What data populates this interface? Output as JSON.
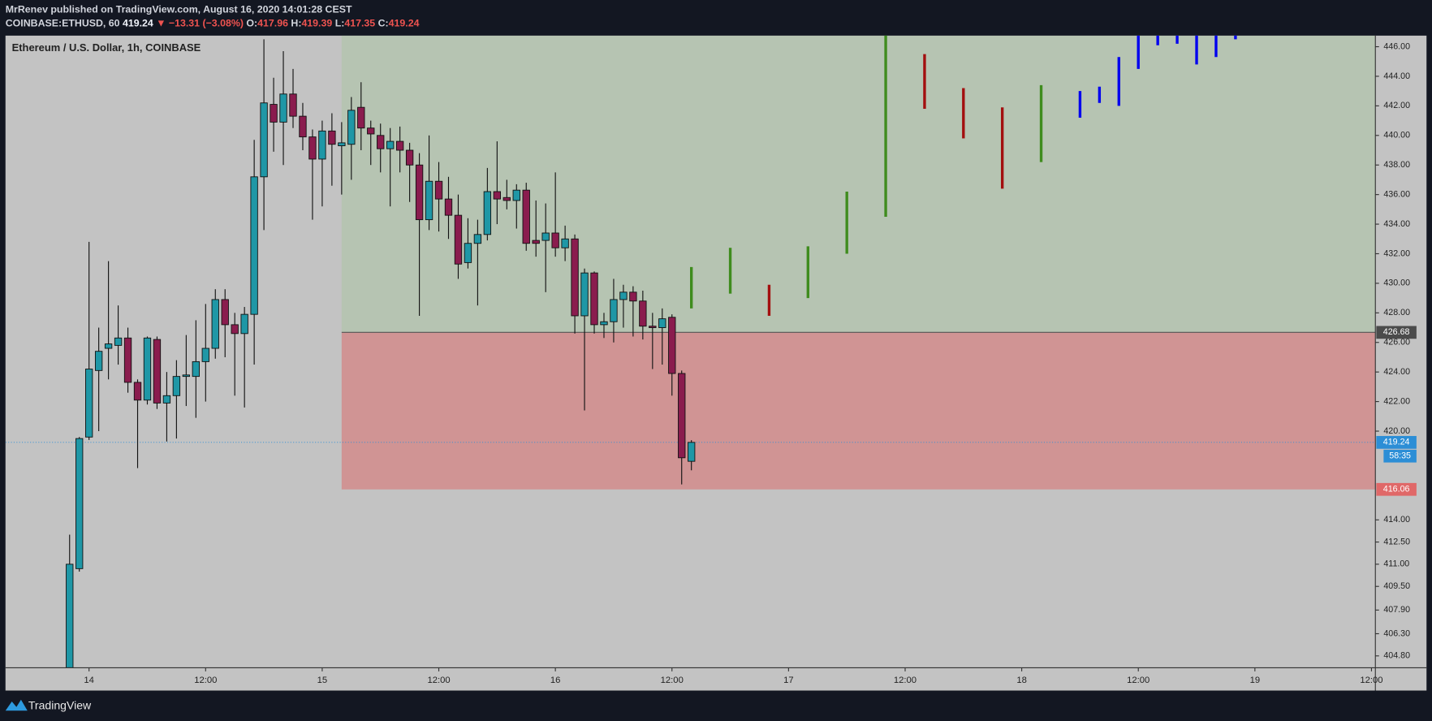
{
  "header": {
    "publisher": "MrRenev published on TradingView.com, August 16, 2020 14:01:28 CEST",
    "symbol": "COINBASE:ETHUSD, 60",
    "price": "419.24",
    "change": "▼ −13.31 (−3.08%)",
    "ohlc": [
      {
        "label": "O:",
        "value": "417.96"
      },
      {
        "label": "H:",
        "value": "419.39"
      },
      {
        "label": "L:",
        "value": "417.35"
      },
      {
        "label": "C:",
        "value": "419.24"
      }
    ]
  },
  "chart_data": {
    "type": "candlestick",
    "title": "Ethereum / U.S. Dollar, 1h, COINBASE",
    "up_color": "#1f97a6",
    "down_color": "#8a1c4e",
    "x": [
      0,
      1,
      2,
      3,
      4,
      5,
      6,
      7,
      8,
      9,
      10,
      11,
      12,
      13,
      14,
      15,
      16,
      17,
      18,
      19,
      20,
      21,
      22,
      23,
      24,
      25,
      26,
      27,
      28,
      29,
      30,
      31,
      32,
      33,
      34,
      35,
      36,
      37,
      38,
      39,
      40,
      41,
      42,
      43,
      44,
      45,
      46,
      47,
      48,
      49,
      50,
      51,
      52,
      53,
      54,
      55,
      56,
      57,
      58,
      59,
      60,
      61,
      62,
      63,
      64
    ],
    "open": [
      404.0,
      410.7,
      419.6,
      424.1,
      425.6,
      425.8,
      426.3,
      423.3,
      422.1,
      426.2,
      421.9,
      422.4,
      423.7,
      423.7,
      424.7,
      425.6,
      428.9,
      427.2,
      426.6,
      427.9,
      437.2,
      442.1,
      440.9,
      442.8,
      441.3,
      439.9,
      438.4,
      440.3,
      439.3,
      439.4,
      441.9,
      440.5,
      440.0,
      439.1,
      439.6,
      439.0,
      438.0,
      434.3,
      436.9,
      435.7,
      434.6,
      431.4,
      432.7,
      433.3,
      436.2,
      435.8,
      435.6,
      436.3,
      432.9,
      432.9,
      433.4,
      432.4,
      433.0,
      427.8,
      430.7,
      427.2,
      427.4,
      428.9,
      429.4,
      428.8,
      427.1,
      427.0,
      427.7,
      423.9,
      417.96
    ],
    "high": [
      413.0,
      419.6,
      432.8,
      427.0,
      431.5,
      428.5,
      427.0,
      423.5,
      426.4,
      426.4,
      424.0,
      424.8,
      426.5,
      427.5,
      428.6,
      429.6,
      429.6,
      428.0,
      428.4,
      439.7,
      446.5,
      443.9,
      445.7,
      444.5,
      442.2,
      440.4,
      441.0,
      441.5,
      440.9,
      442.6,
      443.6,
      441.0,
      440.8,
      440.5,
      440.6,
      439.5,
      438.8,
      440.0,
      438.2,
      437.2,
      436.0,
      434.4,
      434.3,
      437.8,
      439.6,
      437.0,
      436.7,
      436.8,
      435.6,
      435.4,
      437.5,
      433.9,
      433.3,
      431.0,
      430.8,
      428.0,
      430.3,
      429.9,
      429.8,
      429.5,
      428.0,
      428.3,
      427.9,
      424.1,
      419.39
    ],
    "low": [
      403.5,
      410.5,
      419.4,
      420.0,
      423.5,
      424.5,
      422.6,
      417.5,
      421.8,
      421.5,
      419.3,
      419.5,
      421.7,
      420.9,
      422.0,
      424.9,
      425.0,
      422.4,
      421.6,
      424.5,
      433.6,
      438.9,
      438.0,
      440.5,
      439.0,
      434.3,
      435.2,
      436.6,
      436.0,
      437.0,
      439.0,
      438.0,
      437.5,
      435.2,
      437.5,
      435.5,
      427.8,
      433.6,
      433.5,
      433.0,
      430.3,
      431.0,
      428.5,
      432.9,
      434.0,
      435.0,
      433.7,
      432.2,
      431.8,
      429.4,
      431.8,
      431.5,
      426.6,
      421.4,
      426.6,
      426.3,
      426.0,
      427.0,
      426.4,
      426.2,
      424.2,
      424.5,
      422.4,
      416.4,
      417.35
    ],
    "close": [
      411.0,
      419.5,
      424.2,
      425.4,
      425.9,
      426.3,
      423.3,
      422.1,
      426.3,
      421.9,
      422.4,
      423.7,
      423.8,
      424.7,
      425.6,
      428.9,
      427.2,
      426.6,
      427.9,
      437.2,
      442.2,
      440.9,
      442.8,
      441.3,
      439.9,
      438.4,
      440.3,
      439.4,
      439.5,
      441.7,
      440.5,
      440.1,
      439.1,
      439.6,
      439.0,
      438.0,
      434.3,
      436.9,
      435.7,
      434.6,
      431.3,
      432.7,
      433.3,
      436.2,
      435.7,
      435.6,
      436.3,
      432.7,
      432.7,
      433.4,
      432.4,
      433.0,
      427.8,
      430.7,
      427.2,
      427.4,
      428.9,
      429.4,
      428.8,
      427.1,
      427.0,
      427.6,
      423.9,
      418.2,
      419.24
    ],
    "projection": {
      "x": [
        64,
        68,
        72,
        76,
        80,
        84,
        88,
        92,
        96,
        100,
        104,
        106,
        108,
        110,
        112,
        114,
        116,
        118,
        120
      ],
      "high": [
        431.1,
        432.4,
        429.9,
        432.5,
        436.2,
        447.5,
        445.5,
        443.2,
        441.9,
        443.4,
        443.0,
        443.3,
        445.3,
        447.5,
        447.5,
        447.5,
        447.5,
        447.5,
        447.5
      ],
      "low": [
        428.3,
        429.3,
        427.8,
        429.0,
        432.0,
        434.5,
        441.8,
        439.8,
        436.4,
        438.2,
        441.2,
        442.2,
        442.0,
        444.5,
        446.1,
        446.2,
        444.8,
        445.3,
        446.5
      ],
      "colors": [
        "#3f8c1e",
        "#3f8c1e",
        "#a30f0f",
        "#3f8c1e",
        "#3f8c1e",
        "#3f8c1e",
        "#a30f0f",
        "#a30f0f",
        "#a30f0f",
        "#3f8c1e",
        "#0000ee",
        "#0000ee",
        "#0000ee",
        "#0000ee",
        "#0000ee",
        "#0000ee",
        "#0000ee",
        "#0000ee",
        "#0000ee"
      ]
    },
    "zone_start": 28,
    "zone_colors": [
      "#b6c4b2",
      "#d09494"
    ],
    "levels": [
      {
        "value": 426.68,
        "label": "426.68",
        "color": "#4b4b4b"
      },
      {
        "value": 416.06,
        "label": "416.06",
        "color": "#e06868"
      }
    ],
    "last_price": {
      "value": 419.24,
      "label": "419.24",
      "color": "#2c8ed6"
    },
    "countdown": "58:35",
    "xlim": [
      -6.6,
      134.4
    ],
    "xticks": [
      {
        "value": 2,
        "label": "14"
      },
      {
        "value": 14,
        "label": "12:00"
      },
      {
        "value": 26,
        "label": "15"
      },
      {
        "value": 38,
        "label": "12:00"
      },
      {
        "value": 50,
        "label": "16"
      },
      {
        "value": 62,
        "label": "12:00"
      },
      {
        "value": 74,
        "label": "17"
      },
      {
        "value": 86,
        "label": "12:00"
      },
      {
        "value": 98,
        "label": "18"
      },
      {
        "value": 110,
        "label": "12:00"
      },
      {
        "value": 122,
        "label": "19"
      },
      {
        "value": 134,
        "label": "12:00"
      }
    ],
    "ylim": [
      404.0,
      446.75
    ],
    "yticks": [
      {
        "value": 446,
        "label": "446.00"
      },
      {
        "value": 444,
        "label": "444.00"
      },
      {
        "value": 442,
        "label": "442.00"
      },
      {
        "value": 440,
        "label": "440.00"
      },
      {
        "value": 438,
        "label": "438.00"
      },
      {
        "value": 436,
        "label": "436.00"
      },
      {
        "value": 434,
        "label": "434.00"
      },
      {
        "value": 432,
        "label": "432.00"
      },
      {
        "value": 430,
        "label": "430.00"
      },
      {
        "value": 428,
        "label": "428.00"
      },
      {
        "value": 426,
        "label": "426.00"
      },
      {
        "value": 424,
        "label": "424.00"
      },
      {
        "value": 422,
        "label": "422.00"
      },
      {
        "value": 420,
        "label": "420.00"
      },
      {
        "value": 414,
        "label": "414.00"
      },
      {
        "value": 412.5,
        "label": "412.50"
      },
      {
        "value": 411,
        "label": "411.00"
      },
      {
        "value": 409.5,
        "label": "409.50"
      },
      {
        "value": 407.9,
        "label": "407.90"
      },
      {
        "value": 406.3,
        "label": "406.30"
      },
      {
        "value": 404.8,
        "label": "404.80"
      }
    ]
  },
  "footer": {
    "brand": "TradingView"
  }
}
